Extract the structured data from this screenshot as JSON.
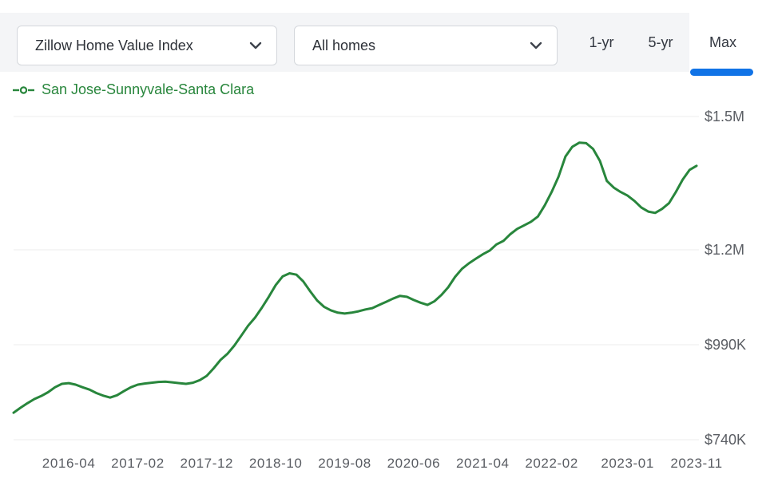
{
  "toolbar": {
    "metric_dropdown": {
      "value": "Zillow Home Value Index"
    },
    "home_type_dropdown": {
      "value": "All homes"
    },
    "range_tabs": [
      {
        "label": "1-yr",
        "active": false
      },
      {
        "label": "5-yr",
        "active": false
      },
      {
        "label": "Max",
        "active": true
      }
    ]
  },
  "legend": {
    "series_label": "San Jose-Sunnyvale-Santa Clara"
  },
  "colors": {
    "line_green": "#28863c",
    "accent_blue": "#1173e6",
    "toolbar_bg": "#f4f5f7",
    "grid_gray": "#ececec",
    "axis_label_gray": "#5a5d63"
  },
  "chart_data": {
    "type": "line",
    "series_name": "San Jose-Sunnyvale-Santa Clara",
    "metric": "Zillow Home Value Index",
    "home_type": "All homes",
    "range": "Max",
    "unit": "USD thousands",
    "x_months": {
      "start": "2015-08",
      "end": "2023-11",
      "step_months": 1,
      "count": 100
    },
    "values_k_usd": [
      811,
      824,
      836,
      847,
      855,
      865,
      878,
      887,
      889,
      885,
      878,
      872,
      863,
      856,
      851,
      857,
      868,
      878,
      885,
      888,
      890,
      892,
      893,
      891,
      889,
      887,
      890,
      897,
      908,
      928,
      950,
      966,
      988,
      1010,
      1032,
      1050,
      1072,
      1096,
      1122,
      1141,
      1148,
      1145,
      1130,
      1108,
      1088,
      1074,
      1066,
      1061,
      1059,
      1061,
      1064,
      1068,
      1071,
      1078,
      1085,
      1092,
      1098,
      1096,
      1089,
      1083,
      1078,
      1086,
      1100,
      1117,
      1140,
      1158,
      1170,
      1180,
      1190,
      1198,
      1212,
      1220,
      1235,
      1247,
      1255,
      1263,
      1275,
      1300,
      1330,
      1365,
      1410,
      1432,
      1441,
      1440,
      1427,
      1400,
      1355,
      1340,
      1330,
      1322,
      1310,
      1295,
      1286,
      1283,
      1292,
      1305,
      1330,
      1358,
      1380,
      1389
    ],
    "y_ticks": [
      {
        "label": "$740K",
        "value": 740
      },
      {
        "label": "$990K",
        "value": 990
      },
      {
        "label": "$1.2M",
        "value": 1200
      },
      {
        "label": "$1.5M",
        "value": 1500
      }
    ],
    "x_ticks": [
      {
        "label": "2016-04",
        "index": 8
      },
      {
        "label": "2017-02",
        "index": 18
      },
      {
        "label": "2017-12",
        "index": 28
      },
      {
        "label": "2018-10",
        "index": 38
      },
      {
        "label": "2019-08",
        "index": 48
      },
      {
        "label": "2020-06",
        "index": 58
      },
      {
        "label": "2021-04",
        "index": 68
      },
      {
        "label": "2022-02",
        "index": 78
      },
      {
        "label": "2023-01",
        "index": 89
      },
      {
        "label": "2023-11",
        "index": 99
      }
    ],
    "grid": "horizontal-only",
    "legend_position": "top-left",
    "ylim_k_usd": [
      690,
      1540
    ]
  }
}
